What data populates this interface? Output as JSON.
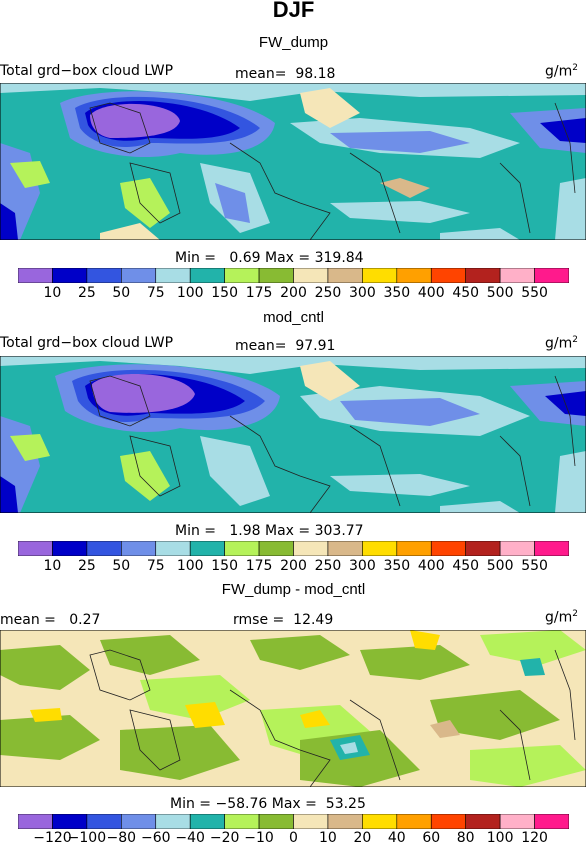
{
  "figure_title": "DJF",
  "panels": [
    {
      "title": "FW_dump",
      "left_label": "Total grd−box cloud LWP",
      "mean_label": "mean=",
      "mean_value": "98.18",
      "unit": "g/m",
      "unit_exp": "2",
      "min_label": "Min =",
      "min_value": "0.69",
      "max_label": "Max =",
      "max_value": "319.84"
    },
    {
      "title": "mod_cntl",
      "left_label": "Total grd−box cloud LWP",
      "mean_label": "mean=",
      "mean_value": "97.91",
      "unit": "g/m",
      "unit_exp": "2",
      "min_label": "Min =",
      "min_value": "1.98",
      "max_label": "Max =",
      "max_value": "303.77"
    },
    {
      "title": "FW_dump - mod_cntl",
      "left_label": "mean =",
      "mean_label": "",
      "mean_value": "0.27",
      "rmse_label": "rmse =",
      "rmse_value": "12.49",
      "unit": "g/m",
      "unit_exp": "2",
      "min_label": "Min =",
      "min_value": "−58.76",
      "max_label": "Max =",
      "max_value": "53.25"
    }
  ],
  "colorbars": {
    "lwp_levels": [
      "10",
      "25",
      "50",
      "75",
      "100",
      "150",
      "175",
      "200",
      "250",
      "300",
      "350",
      "400",
      "450",
      "500",
      "550"
    ],
    "diff_levels": [
      "−120",
      "−100",
      "−80",
      "−60",
      "−40",
      "−20",
      "−10",
      "0",
      "10",
      "20",
      "40",
      "60",
      "80",
      "100",
      "120"
    ],
    "colors": [
      "#9966dd",
      "#0000c8",
      "#3355e0",
      "#6f8fe8",
      "#a8dde5",
      "#22b3aa",
      "#b5f25a",
      "#88bb33",
      "#f5e6b8",
      "#d9b88a",
      "#ffdd00",
      "#ffa000",
      "#ff4400",
      "#b3221e",
      "#ffb0c8",
      "#ff1a8c"
    ]
  },
  "chart_data": [
    {
      "type": "heatmap",
      "title": "FW_dump",
      "variable": "Total grd−box cloud LWP",
      "units": "g/m2",
      "mean": 98.18,
      "min": 0.69,
      "max": 319.84,
      "levels": [
        10,
        25,
        50,
        75,
        100,
        150,
        175,
        200,
        250,
        300,
        350,
        400,
        450,
        500,
        550
      ]
    },
    {
      "type": "heatmap",
      "title": "mod_cntl",
      "variable": "Total grd−box cloud LWP",
      "units": "g/m2",
      "mean": 97.91,
      "min": 1.98,
      "max": 303.77,
      "levels": [
        10,
        25,
        50,
        75,
        100,
        150,
        175,
        200,
        250,
        300,
        350,
        400,
        450,
        500,
        550
      ]
    },
    {
      "type": "heatmap",
      "title": "FW_dump - mod_cntl",
      "units": "g/m2",
      "mean": 0.27,
      "rmse": 12.49,
      "min": -58.76,
      "max": 53.25,
      "levels": [
        -120,
        -100,
        -80,
        -60,
        -40,
        -20,
        -10,
        0,
        10,
        20,
        40,
        60,
        80,
        100,
        120
      ]
    }
  ]
}
